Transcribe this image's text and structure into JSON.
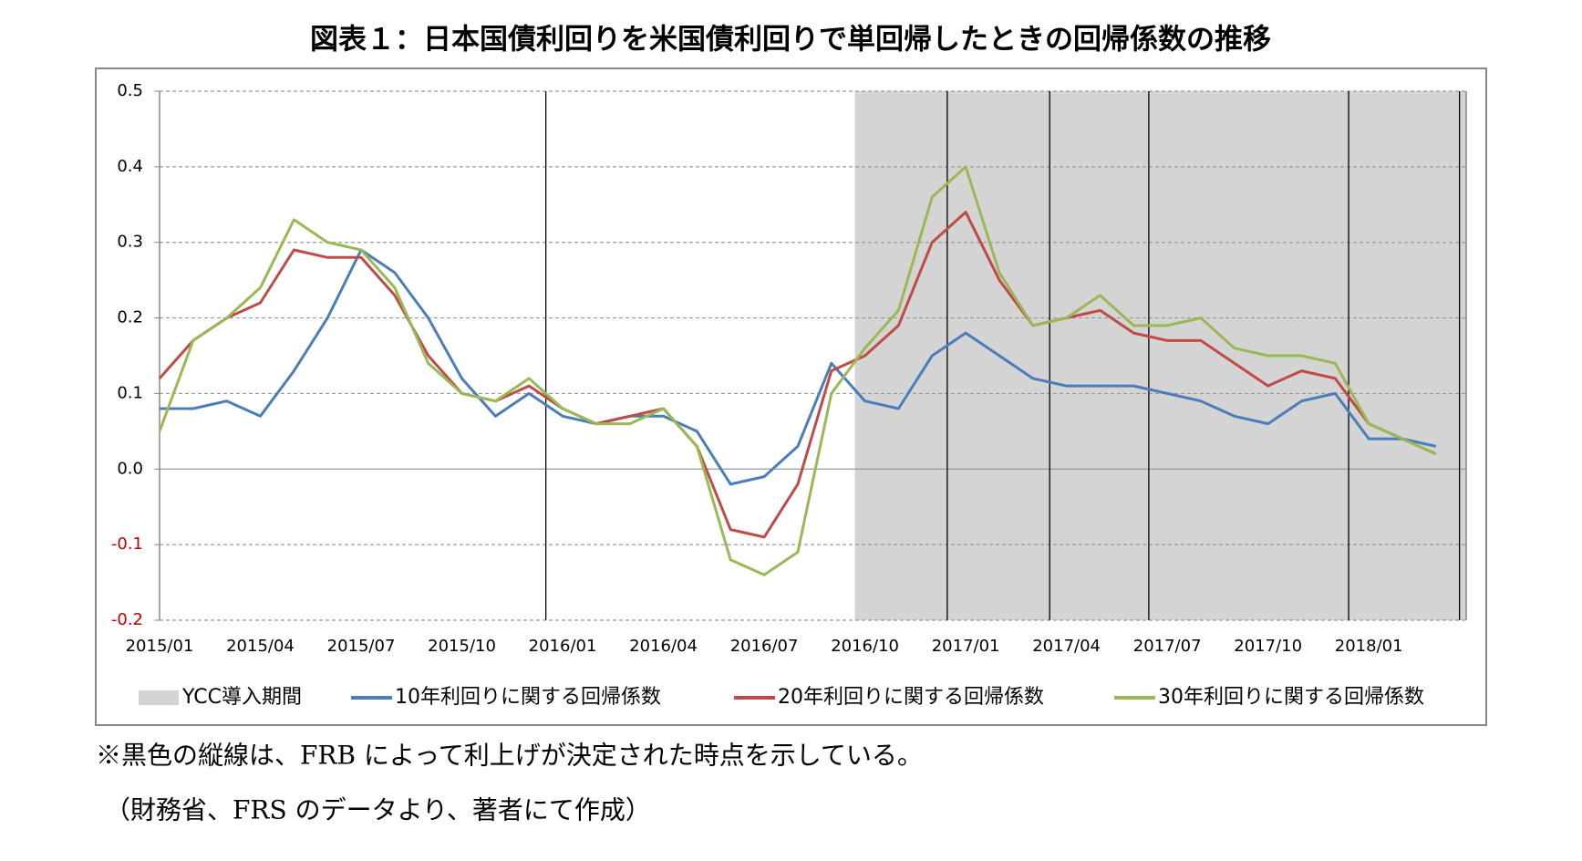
{
  "chart_data": {
    "type": "line",
    "title": "図表１：日本国債利回りを米国債利回りで単回帰したときの回帰係数の推移",
    "categories": [
      "2015/01",
      null,
      null,
      "2015/04",
      null,
      null,
      "2015/07",
      null,
      null,
      "2015/10",
      null,
      null,
      "2016/01",
      null,
      null,
      "2016/04",
      null,
      null,
      "2016/07",
      null,
      null,
      "2016/10",
      null,
      null,
      "2017/01",
      null,
      null,
      "2017/04",
      null,
      null,
      "2017/07",
      null,
      null,
      "2017/10",
      null,
      null,
      "2018/01",
      null,
      null
    ],
    "xlim": [
      0,
      38.9
    ],
    "ylim": [
      -0.2,
      0.5
    ],
    "yticks": [
      -0.2,
      -0.1,
      {
        "value": 0,
        "label": "0.0"
      },
      0.1,
      0.2,
      0.3,
      0.4,
      0.5
    ],
    "negative_tick_color": "#c00000",
    "grid": true,
    "shade": {
      "name": "YCC導入期間",
      "color": "#d4d4d4",
      "start": 20.7
    },
    "vlines": {
      "color": "#000000",
      "x": [
        11.5,
        23.45,
        26.5,
        29.45,
        35.4,
        38.7
      ]
    },
    "series": [
      {
        "name": "10年利回りに関する回帰係数",
        "color": "#4a7ebb",
        "values": [
          0.08,
          0.08,
          0.09,
          0.07,
          0.13,
          0.2,
          0.29,
          0.26,
          0.2,
          0.12,
          0.07,
          0.1,
          0.07,
          0.06,
          0.07,
          0.07,
          0.05,
          -0.02,
          -0.01,
          0.03,
          0.14,
          0.09,
          0.08,
          0.15,
          0.18,
          0.15,
          0.12,
          0.11,
          0.11,
          0.11,
          0.1,
          0.09,
          0.07,
          0.06,
          0.09,
          0.1,
          0.04,
          0.04,
          0.03
        ]
      },
      {
        "name": "20年利回りに関する回帰係数",
        "color": "#be4b48",
        "values": [
          0.12,
          0.17,
          0.2,
          0.22,
          0.29,
          0.28,
          0.28,
          0.23,
          0.15,
          0.1,
          0.09,
          0.11,
          0.08,
          0.06,
          0.07,
          0.08,
          0.03,
          -0.08,
          -0.09,
          -0.02,
          0.13,
          0.15,
          0.19,
          0.3,
          0.34,
          0.25,
          0.19,
          0.2,
          0.21,
          0.18,
          0.17,
          0.17,
          0.14,
          0.11,
          0.13,
          0.12,
          0.06,
          0.04,
          0.02
        ]
      },
      {
        "name": "30年利回りに関する回帰係数",
        "color": "#98b954",
        "values": [
          0.05,
          0.17,
          0.2,
          0.24,
          0.33,
          0.3,
          0.29,
          0.24,
          0.14,
          0.1,
          0.09,
          0.12,
          0.08,
          0.06,
          0.06,
          0.08,
          0.03,
          -0.12,
          -0.14,
          -0.11,
          0.1,
          0.16,
          0.21,
          0.36,
          0.4,
          0.26,
          0.19,
          0.2,
          0.23,
          0.19,
          0.19,
          0.2,
          0.16,
          0.15,
          0.15,
          0.14,
          0.06,
          0.04,
          0.02
        ]
      }
    ],
    "notes": [
      "※黒色の縦線は、FRB によって利上げが決定された時点を示している。",
      "（財務省、FRS のデータより、著者にて作成）"
    ]
  }
}
